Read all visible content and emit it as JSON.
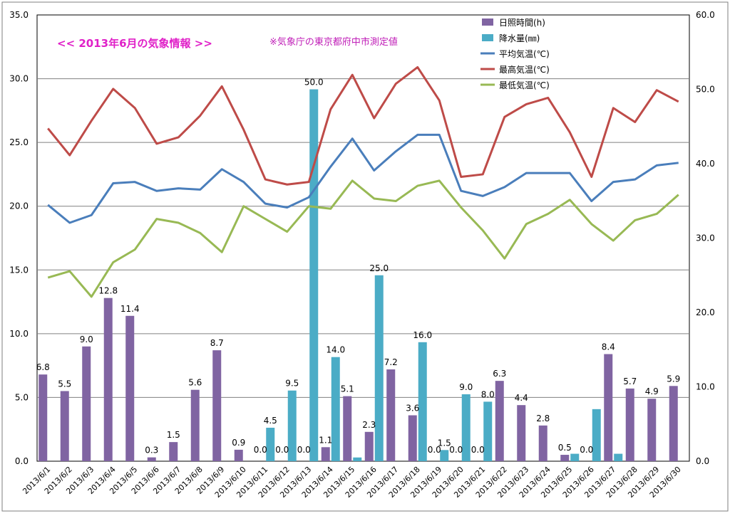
{
  "chart_data": {
    "type": "combo",
    "title": "<<  2013年6月の気象情報  >>",
    "subtitle": "※気象庁の東京都府中市測定値",
    "categories": [
      "2013/6/1",
      "2013/6/2",
      "2013/6/3",
      "2013/6/4",
      "2013/6/5",
      "2013/6/6",
      "2013/6/7",
      "2013/6/8",
      "2013/6/9",
      "2013/6/10",
      "2013/6/11",
      "2013/6/12",
      "2013/6/13",
      "2013/6/14",
      "2013/6/15",
      "2013/6/16",
      "2013/6/17",
      "2013/6/18",
      "2013/6/19",
      "2013/6/20",
      "2013/6/21",
      "2013/6/22",
      "2013/6/23",
      "2013/6/24",
      "2013/6/25",
      "2013/6/26",
      "2013/6/27",
      "2013/6/28",
      "2013/6/29",
      "2013/6/30"
    ],
    "left_axis": {
      "min": 0,
      "max": 35,
      "step": 5,
      "ticks": [
        "0.0",
        "5.0",
        "10.0",
        "15.0",
        "20.0",
        "25.0",
        "30.0",
        "35.0"
      ]
    },
    "right_axis": {
      "min": 0,
      "max": 60,
      "step": 10,
      "ticks": [
        "0.0",
        "10.0",
        "20.0",
        "30.0",
        "40.0",
        "50.0",
        "60.0"
      ]
    },
    "grid": true,
    "legend_position": "top-right",
    "bar_series": [
      {
        "name": "日照時間(h)",
        "color": "#8064a2",
        "axis": "left",
        "values": [
          6.8,
          5.5,
          9.0,
          12.8,
          11.4,
          0.3,
          1.5,
          5.6,
          8.7,
          0.9,
          0.0,
          0.0,
          0.0,
          1.1,
          5.1,
          2.3,
          7.2,
          3.6,
          0.0,
          0.0,
          0.0,
          6.3,
          4.4,
          2.8,
          0.5,
          0.0,
          8.4,
          5.7,
          4.9,
          5.9
        ],
        "labels": [
          "6.8",
          "5.5",
          "9.0",
          "12.8",
          "11.4",
          "0.3",
          "1.5",
          "5.6",
          "8.7",
          "0.9",
          "0.0",
          "0.0",
          "0.0",
          "1.1",
          "5.1",
          "2.3",
          "7.2",
          "3.6",
          "0.0",
          "0.0",
          "0.0",
          "6.3",
          "4.4",
          "2.8",
          "0.5",
          "0.0",
          "8.4",
          "5.7",
          "4.9",
          "5.9"
        ]
      },
      {
        "name": "降水量(㎜)",
        "color": "#4bacc6",
        "axis": "right",
        "values": [
          0,
          0,
          0,
          0,
          0,
          0,
          0,
          0,
          0,
          0,
          4.5,
          9.5,
          50.0,
          14.0,
          0.5,
          25.0,
          0,
          16.0,
          1.5,
          9.0,
          8.0,
          0,
          0,
          0,
          1.0,
          7.0,
          1.0,
          0,
          0,
          0
        ],
        "labels": [
          "",
          "",
          "",
          "",
          "",
          "",
          "",
          "",
          "",
          "",
          "4.5",
          "9.5",
          "50.0",
          "14.0",
          "",
          "25.0",
          "",
          "16.0",
          "1.5",
          "9.0",
          "8.0",
          "",
          "",
          "",
          "",
          "",
          "",
          "",
          "",
          ""
        ]
      }
    ],
    "line_series": [
      {
        "name": "平均気温(℃)",
        "color": "#4a7ebb",
        "axis": "left",
        "values": [
          20.1,
          18.7,
          19.3,
          21.8,
          21.9,
          21.2,
          21.4,
          21.3,
          22.9,
          21.9,
          20.2,
          19.9,
          20.7,
          23.1,
          25.3,
          22.8,
          24.3,
          25.6,
          25.6,
          21.2,
          20.8,
          21.5,
          22.6,
          22.6,
          22.6,
          20.4,
          21.9,
          22.1,
          23.2,
          23.4
        ]
      },
      {
        "name": "最高気温(℃)",
        "color": "#be4b48",
        "axis": "left",
        "values": [
          26.1,
          24.0,
          26.7,
          29.2,
          27.7,
          24.9,
          25.4,
          27.1,
          29.4,
          26.0,
          22.1,
          21.7,
          21.9,
          27.6,
          30.3,
          26.9,
          29.6,
          30.9,
          28.3,
          22.3,
          22.5,
          27.0,
          28.0,
          28.5,
          25.8,
          22.3,
          27.7,
          26.6,
          29.1,
          28.2
        ]
      },
      {
        "name": "最低気温(℃)",
        "color": "#98b954",
        "axis": "left",
        "values": [
          14.4,
          14.9,
          12.9,
          15.6,
          16.6,
          19.0,
          18.7,
          17.9,
          16.4,
          20.0,
          19.0,
          18.0,
          20.0,
          19.8,
          22.0,
          20.6,
          20.4,
          21.6,
          22.0,
          19.9,
          18.1,
          15.9,
          18.6,
          19.4,
          20.5,
          18.6,
          17.3,
          18.9,
          19.4,
          20.9
        ]
      }
    ]
  }
}
